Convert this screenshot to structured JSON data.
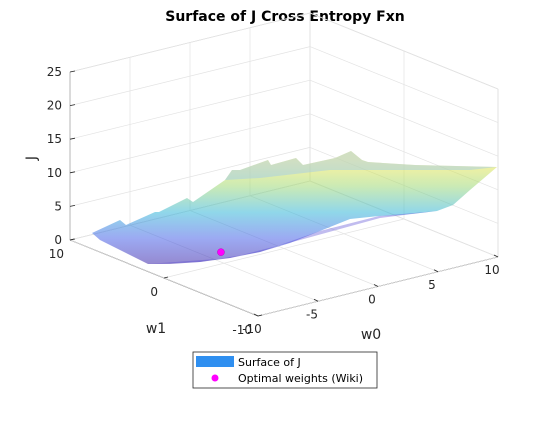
{
  "chart_data": {
    "type": "surface3d",
    "title": "Surface of J Cross Entropy Fxn",
    "xlabel": "w0",
    "ylabel": "w1",
    "zlabel": "J",
    "xlim": [
      -10,
      10
    ],
    "ylim": [
      -10,
      10
    ],
    "zlim": [
      0,
      25
    ],
    "x_ticks": [
      -10,
      -5,
      0,
      5,
      10
    ],
    "y_ticks": [
      10,
      0,
      -10
    ],
    "z_ticks": [
      0,
      5,
      10,
      15,
      20,
      25
    ],
    "grid": true,
    "legend_placement": "bottom-center",
    "series": [
      {
        "name": "Surface of J",
        "kind": "surface",
        "color": "#2f8ff0"
      },
      {
        "name": "Optimal weights (Wiki)",
        "kind": "point",
        "color": "#ff00ff",
        "x": -4.08,
        "y": 1.5,
        "z": 0.4
      }
    ]
  }
}
